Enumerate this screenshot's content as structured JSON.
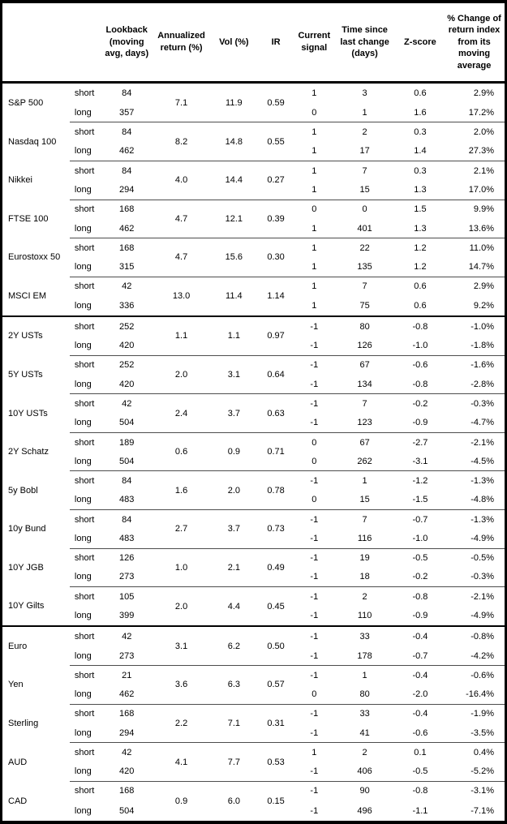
{
  "header": {
    "columns": {
      "lookback": "Lookback (moving avg, days)",
      "annualized_return": "Annualized return (%)",
      "vol": "Vol (%)",
      "ir": "IR",
      "current_signal": "Current signal",
      "time_since": "Time since last change (days)",
      "zscore": "Z-score",
      "pct_change": "% Change of return index from its moving average"
    }
  },
  "table": {
    "groups": [
      {
        "name": "S&P 500",
        "annualized_return": "7.1",
        "vol": "11.9",
        "ir": "0.59",
        "section_end": false,
        "short": {
          "label": "short",
          "lookback": "84",
          "signal": "1",
          "days": "3",
          "zscore": "0.6",
          "change": "2.9%"
        },
        "long": {
          "label": "long",
          "lookback": "357",
          "signal": "0",
          "days": "1",
          "zscore": "1.6",
          "change": "17.2%"
        }
      },
      {
        "name": "Nasdaq 100",
        "annualized_return": "8.2",
        "vol": "14.8",
        "ir": "0.55",
        "section_end": false,
        "short": {
          "label": "short",
          "lookback": "84",
          "signal": "1",
          "days": "2",
          "zscore": "0.3",
          "change": "2.0%"
        },
        "long": {
          "label": "long",
          "lookback": "462",
          "signal": "1",
          "days": "17",
          "zscore": "1.4",
          "change": "27.3%"
        }
      },
      {
        "name": "Nikkei",
        "annualized_return": "4.0",
        "vol": "14.4",
        "ir": "0.27",
        "section_end": false,
        "short": {
          "label": "short",
          "lookback": "84",
          "signal": "1",
          "days": "7",
          "zscore": "0.3",
          "change": "2.1%"
        },
        "long": {
          "label": "long",
          "lookback": "294",
          "signal": "1",
          "days": "15",
          "zscore": "1.3",
          "change": "17.0%"
        }
      },
      {
        "name": "FTSE 100",
        "annualized_return": "4.7",
        "vol": "12.1",
        "ir": "0.39",
        "section_end": false,
        "short": {
          "label": "short",
          "lookback": "168",
          "signal": "0",
          "days": "0",
          "zscore": "1.5",
          "change": "9.9%"
        },
        "long": {
          "label": "long",
          "lookback": "462",
          "signal": "1",
          "days": "401",
          "zscore": "1.3",
          "change": "13.6%"
        }
      },
      {
        "name": "Eurostoxx 50",
        "annualized_return": "4.7",
        "vol": "15.6",
        "ir": "0.30",
        "section_end": false,
        "short": {
          "label": "short",
          "lookback": "168",
          "signal": "1",
          "days": "22",
          "zscore": "1.2",
          "change": "11.0%"
        },
        "long": {
          "label": "long",
          "lookback": "315",
          "signal": "1",
          "days": "135",
          "zscore": "1.2",
          "change": "14.7%"
        }
      },
      {
        "name": "MSCI EM",
        "annualized_return": "13.0",
        "vol": "11.4",
        "ir": "1.14",
        "section_end": true,
        "short": {
          "label": "short",
          "lookback": "42",
          "signal": "1",
          "days": "7",
          "zscore": "0.6",
          "change": "2.9%"
        },
        "long": {
          "label": "long",
          "lookback": "336",
          "signal": "1",
          "days": "75",
          "zscore": "0.6",
          "change": "9.2%"
        }
      },
      {
        "name": "2Y USTs",
        "annualized_return": "1.1",
        "vol": "1.1",
        "ir": "0.97",
        "section_end": false,
        "short": {
          "label": "short",
          "lookback": "252",
          "signal": "-1",
          "days": "80",
          "zscore": "-0.8",
          "change": "-1.0%"
        },
        "long": {
          "label": "long",
          "lookback": "420",
          "signal": "-1",
          "days": "126",
          "zscore": "-1.0",
          "change": "-1.8%"
        }
      },
      {
        "name": "5Y USTs",
        "annualized_return": "2.0",
        "vol": "3.1",
        "ir": "0.64",
        "section_end": false,
        "short": {
          "label": "short",
          "lookback": "252",
          "signal": "-1",
          "days": "67",
          "zscore": "-0.6",
          "change": "-1.6%"
        },
        "long": {
          "label": "long",
          "lookback": "420",
          "signal": "-1",
          "days": "134",
          "zscore": "-0.8",
          "change": "-2.8%"
        }
      },
      {
        "name": "10Y USTs",
        "annualized_return": "2.4",
        "vol": "3.7",
        "ir": "0.63",
        "section_end": false,
        "short": {
          "label": "short",
          "lookback": "42",
          "signal": "-1",
          "days": "7",
          "zscore": "-0.2",
          "change": "-0.3%"
        },
        "long": {
          "label": "long",
          "lookback": "504",
          "signal": "-1",
          "days": "123",
          "zscore": "-0.9",
          "change": "-4.7%"
        }
      },
      {
        "name": "2Y Schatz",
        "annualized_return": "0.6",
        "vol": "0.9",
        "ir": "0.71",
        "section_end": false,
        "short": {
          "label": "short",
          "lookback": "189",
          "signal": "0",
          "days": "67",
          "zscore": "-2.7",
          "change": "-2.1%"
        },
        "long": {
          "label": "long",
          "lookback": "504",
          "signal": "0",
          "days": "262",
          "zscore": "-3.1",
          "change": "-4.5%"
        }
      },
      {
        "name": "5y Bobl",
        "annualized_return": "1.6",
        "vol": "2.0",
        "ir": "0.78",
        "section_end": false,
        "short": {
          "label": "short",
          "lookback": "84",
          "signal": "-1",
          "days": "1",
          "zscore": "-1.2",
          "change": "-1.3%"
        },
        "long": {
          "label": "long",
          "lookback": "483",
          "signal": "0",
          "days": "15",
          "zscore": "-1.5",
          "change": "-4.8%"
        }
      },
      {
        "name": "10y Bund",
        "annualized_return": "2.7",
        "vol": "3.7",
        "ir": "0.73",
        "section_end": false,
        "short": {
          "label": "short",
          "lookback": "84",
          "signal": "-1",
          "days": "7",
          "zscore": "-0.7",
          "change": "-1.3%"
        },
        "long": {
          "label": "long",
          "lookback": "483",
          "signal": "-1",
          "days": "116",
          "zscore": "-1.0",
          "change": "-4.9%"
        }
      },
      {
        "name": "10Y JGB",
        "annualized_return": "1.0",
        "vol": "2.1",
        "ir": "0.49",
        "section_end": false,
        "short": {
          "label": "short",
          "lookback": "126",
          "signal": "-1",
          "days": "19",
          "zscore": "-0.5",
          "change": "-0.5%"
        },
        "long": {
          "label": "long",
          "lookback": "273",
          "signal": "-1",
          "days": "18",
          "zscore": "-0.2",
          "change": "-0.3%"
        }
      },
      {
        "name": "10Y Gilts",
        "annualized_return": "2.0",
        "vol": "4.4",
        "ir": "0.45",
        "section_end": true,
        "short": {
          "label": "short",
          "lookback": "105",
          "signal": "-1",
          "days": "2",
          "zscore": "-0.8",
          "change": "-2.1%"
        },
        "long": {
          "label": "long",
          "lookback": "399",
          "signal": "-1",
          "days": "110",
          "zscore": "-0.9",
          "change": "-4.9%"
        }
      },
      {
        "name": "Euro",
        "annualized_return": "3.1",
        "vol": "6.2",
        "ir": "0.50",
        "section_end": false,
        "short": {
          "label": "short",
          "lookback": "42",
          "signal": "-1",
          "days": "33",
          "zscore": "-0.4",
          "change": "-0.8%"
        },
        "long": {
          "label": "long",
          "lookback": "273",
          "signal": "-1",
          "days": "178",
          "zscore": "-0.7",
          "change": "-4.2%"
        }
      },
      {
        "name": "Yen",
        "annualized_return": "3.6",
        "vol": "6.3",
        "ir": "0.57",
        "section_end": false,
        "short": {
          "label": "short",
          "lookback": "21",
          "signal": "-1",
          "days": "1",
          "zscore": "-0.4",
          "change": "-0.6%"
        },
        "long": {
          "label": "long",
          "lookback": "462",
          "signal": "0",
          "days": "80",
          "zscore": "-2.0",
          "change": "-16.4%"
        }
      },
      {
        "name": "Sterling",
        "annualized_return": "2.2",
        "vol": "7.1",
        "ir": "0.31",
        "section_end": false,
        "short": {
          "label": "short",
          "lookback": "168",
          "signal": "-1",
          "days": "33",
          "zscore": "-0.4",
          "change": "-1.9%"
        },
        "long": {
          "label": "long",
          "lookback": "294",
          "signal": "-1",
          "days": "41",
          "zscore": "-0.6",
          "change": "-3.5%"
        }
      },
      {
        "name": "AUD",
        "annualized_return": "4.1",
        "vol": "7.7",
        "ir": "0.53",
        "section_end": false,
        "short": {
          "label": "short",
          "lookback": "42",
          "signal": "1",
          "days": "2",
          "zscore": "0.1",
          "change": "0.4%"
        },
        "long": {
          "long_note": "",
          "label": "long",
          "lookback": "420",
          "signal": "-1",
          "days": "406",
          "zscore": "-0.5",
          "change": "-5.2%"
        }
      },
      {
        "name": "CAD",
        "annualized_return": "0.9",
        "vol": "6.0",
        "ir": "0.15",
        "section_end": false,
        "short": {
          "label": "short",
          "lookback": "168",
          "signal": "-1",
          "days": "90",
          "zscore": "-0.8",
          "change": "-3.1%"
        },
        "long": {
          "label": "long",
          "lookback": "504",
          "signal": "-1",
          "days": "496",
          "zscore": "-1.1",
          "change": "-7.1%"
        }
      }
    ]
  }
}
